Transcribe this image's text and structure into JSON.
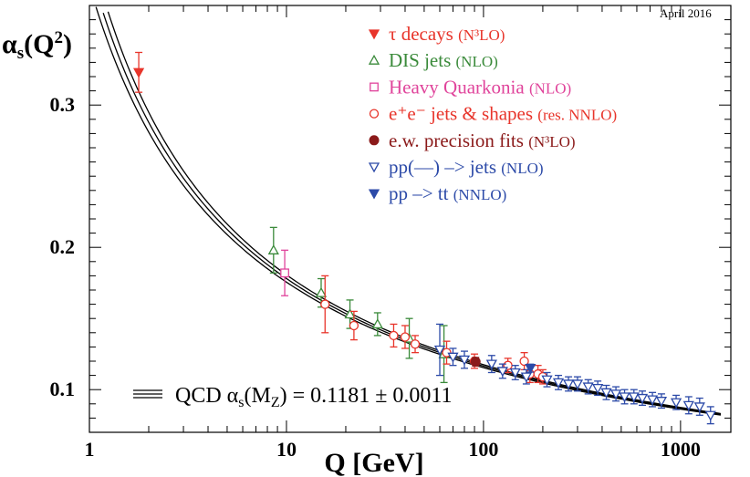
{
  "chart_data": {
    "type": "scatter",
    "title": "",
    "date_label": "April 2016",
    "xlabel": "Q [GeV]",
    "ylabel": {
      "main": "α",
      "sub": "s",
      "rest": "(Q",
      "sup": "2",
      "end": ")"
    },
    "xscale": "log",
    "xlim": [
      1,
      1800
    ],
    "ylim": [
      0.07,
      0.37
    ],
    "x_ticks": [
      {
        "value": 1,
        "label": "1"
      },
      {
        "value": 10,
        "label": "10"
      },
      {
        "value": 100,
        "label": "100"
      },
      {
        "value": 1000,
        "label": "1000"
      }
    ],
    "y_ticks": [
      {
        "value": 0.1,
        "label": "0.1"
      },
      {
        "value": 0.2,
        "label": "0.2"
      },
      {
        "value": 0.3,
        "label": "0.3"
      }
    ],
    "qcd_band": {
      "alpha_mz": 0.1181,
      "uncertainty": 0.0011,
      "mz": 91.19,
      "label_prefix": "QCD α",
      "label_sub1": "s",
      "label_open": "(M",
      "label_sub2": "Z",
      "label_suffix": ") = 0.1181 ± 0.0011"
    },
    "legend_position": "top-right",
    "series": [
      {
        "name": "τ decays",
        "order": "(N³LO)",
        "color": "#e8352b",
        "marker": "tri-down-filled",
        "points": [
          [
            1.78,
            0.323,
            0.014
          ]
        ]
      },
      {
        "name": "DIS jets",
        "order": "(NLO)",
        "color": "#3a8a3a",
        "marker": "tri-up-open",
        "points": [
          [
            8.6,
            0.198,
            0.016
          ],
          [
            15,
            0.168,
            0.01
          ],
          [
            21,
            0.153,
            0.01
          ],
          [
            29,
            0.146,
            0.008
          ],
          [
            42,
            0.136,
            0.014
          ],
          [
            63,
            0.125,
            0.02
          ]
        ]
      },
      {
        "name": "Heavy Quarkonia",
        "order": "(NLO)",
        "color": "#e0449b",
        "marker": "square-open",
        "points": [
          [
            9.8,
            0.182,
            0.016
          ]
        ]
      },
      {
        "name": "e⁺e⁻ jets & shapes",
        "order": "(res. NNLO)",
        "color": "#e8352b",
        "marker": "circle-open",
        "points": [
          [
            15.7,
            0.16,
            0.02
          ],
          [
            22,
            0.145,
            0.01
          ],
          [
            35,
            0.138,
            0.008
          ],
          [
            40,
            0.137,
            0.008
          ],
          [
            45,
            0.132,
            0.006
          ],
          [
            65,
            0.126,
            0.008
          ],
          [
            90,
            0.12,
            0.005
          ],
          [
            133,
            0.117,
            0.005
          ],
          [
            161,
            0.12,
            0.006
          ],
          [
            172,
            0.111,
            0.006
          ],
          [
            189,
            0.111,
            0.006
          ],
          [
            200,
            0.109,
            0.005
          ]
        ]
      },
      {
        "name": "e.w. precision fits",
        "order": "(N³LO)",
        "color": "#8b1a1a",
        "marker": "circle-filled",
        "points": [
          [
            91.19,
            0.1196,
            0.003
          ]
        ]
      },
      {
        "name": "pp(—) –> jets",
        "order": "(NLO)",
        "color": "#2c4aa8",
        "marker": "tri-down-open",
        "points": [
          [
            60,
            0.128,
            0.018
          ],
          [
            70,
            0.123,
            0.006
          ],
          [
            80,
            0.121,
            0.006
          ],
          [
            110,
            0.118,
            0.006
          ],
          [
            125,
            0.113,
            0.005
          ],
          [
            145,
            0.112,
            0.005
          ],
          [
            165,
            0.109,
            0.005
          ],
          [
            210,
            0.107,
            0.005
          ],
          [
            240,
            0.105,
            0.005
          ],
          [
            270,
            0.104,
            0.005
          ],
          [
            300,
            0.104,
            0.005
          ],
          [
            340,
            0.102,
            0.005
          ],
          [
            380,
            0.101,
            0.005
          ],
          [
            420,
            0.098,
            0.005
          ],
          [
            470,
            0.097,
            0.005
          ],
          [
            520,
            0.095,
            0.005
          ],
          [
            580,
            0.095,
            0.005
          ],
          [
            640,
            0.094,
            0.005
          ],
          [
            720,
            0.093,
            0.005
          ],
          [
            800,
            0.092,
            0.005
          ],
          [
            950,
            0.091,
            0.005
          ],
          [
            1100,
            0.089,
            0.006
          ],
          [
            1250,
            0.088,
            0.006
          ],
          [
            1420,
            0.082,
            0.006
          ]
        ]
      },
      {
        "name": "pp –> tt",
        "order": "(NNLO)",
        "color": "#2c4aa8",
        "marker": "tri-down-filled",
        "points": [
          [
            173,
            0.1151,
            0.0028
          ]
        ]
      }
    ]
  }
}
